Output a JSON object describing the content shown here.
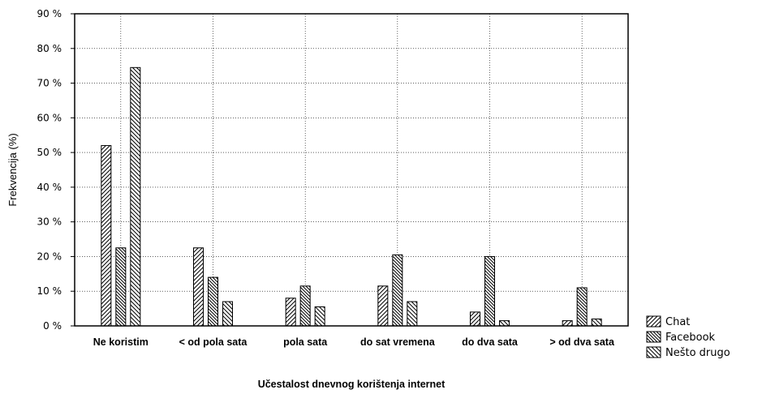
{
  "chart_data": {
    "type": "bar",
    "title": "",
    "xlabel": "Učestalost dnevnog korištenja internet",
    "ylabel": "Frekvencija (%)",
    "ylim": [
      0,
      90
    ],
    "yticks": [
      "0 %",
      "10 %",
      "20 %",
      "30 %",
      "40 %",
      "50 %",
      "60 %",
      "70 %",
      "80 %",
      "90 %"
    ],
    "grid": true,
    "legend_position": "bottom-right",
    "categories": [
      "Ne koristim",
      "< od pola sata",
      "pola sata",
      "do sat vremena",
      "do dva sata",
      "> od dva sata"
    ],
    "series": [
      {
        "name": "Chat",
        "values": [
          52,
          22.5,
          8,
          11.5,
          4,
          1.5
        ],
        "pattern": "hatch-forward"
      },
      {
        "name": "Facebook",
        "values": [
          22.5,
          14,
          11.5,
          20.5,
          20,
          11
        ],
        "pattern": "hatch-back-dense"
      },
      {
        "name": "Nešto drugo",
        "values": [
          74.5,
          7,
          5.5,
          7,
          1.5,
          2
        ],
        "pattern": "hatch-back"
      }
    ]
  }
}
